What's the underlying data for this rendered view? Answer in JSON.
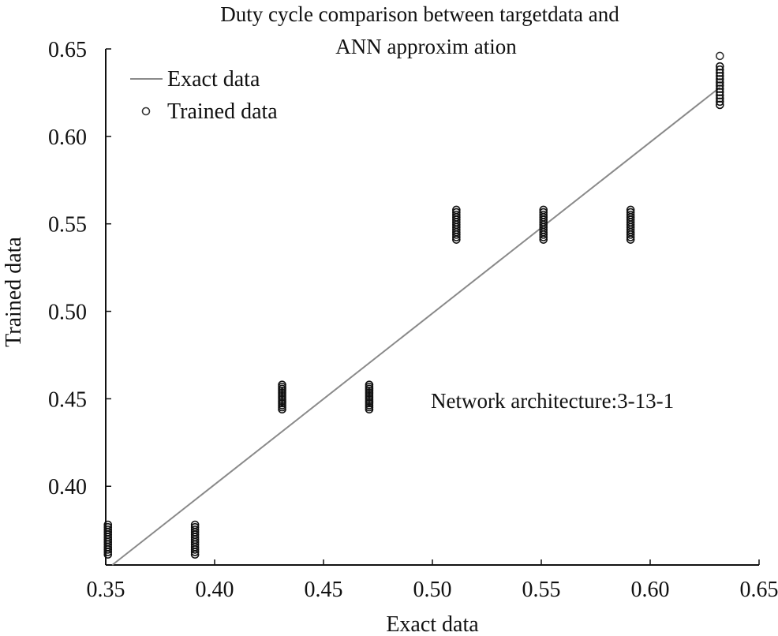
{
  "chart_data": {
    "type": "scatter",
    "title_lines": [
      "Duty cycle comparison between targetdata and",
      "ANN approxim ation"
    ],
    "xlabel": "Exact data",
    "ylabel": "Trained data",
    "xlim": [
      0.35,
      0.65
    ],
    "ylim": [
      0.355,
      0.65
    ],
    "x_ticks": [
      {
        "value": 0.35,
        "label": "0.35"
      },
      {
        "value": 0.4,
        "label": "0.40"
      },
      {
        "value": 0.45,
        "label": "0.45"
      },
      {
        "value": 0.5,
        "label": "0.50"
      },
      {
        "value": 0.55,
        "label": "0.55"
      },
      {
        "value": 0.6,
        "label": "0.60"
      },
      {
        "value": 0.65,
        "label": "0.65"
      }
    ],
    "y_ticks": [
      {
        "value": 0.4,
        "label": "0.40"
      },
      {
        "value": 0.45,
        "label": "0.45"
      },
      {
        "value": 0.5,
        "label": "0.50"
      },
      {
        "value": 0.55,
        "label": "0.55"
      },
      {
        "value": 0.6,
        "label": "0.60"
      },
      {
        "value": 0.65,
        "label": "0.65"
      }
    ],
    "series": [
      {
        "name": "Exact data",
        "kind": "line",
        "color": "#8a8a8a",
        "points": [
          [
            0.353,
            0.355
          ],
          [
            0.632,
            0.628
          ]
        ]
      },
      {
        "name": "Trained data",
        "kind": "scatter",
        "marker": "open-circle",
        "color": "#111111",
        "clusters": [
          {
            "x": 0.351,
            "y_min": 0.361,
            "y_max": 0.378
          },
          {
            "x": 0.391,
            "y_min": 0.361,
            "y_max": 0.378
          },
          {
            "x": 0.431,
            "y_min": 0.444,
            "y_max": 0.458
          },
          {
            "x": 0.471,
            "y_min": 0.444,
            "y_max": 0.458
          },
          {
            "x": 0.511,
            "y_min": 0.541,
            "y_max": 0.558
          },
          {
            "x": 0.551,
            "y_min": 0.541,
            "y_max": 0.558
          },
          {
            "x": 0.591,
            "y_min": 0.541,
            "y_max": 0.558
          },
          {
            "x": 0.632,
            "y_min": 0.618,
            "y_max": 0.64
          }
        ],
        "outliers": [
          [
            0.632,
            0.646
          ]
        ]
      }
    ],
    "legend": {
      "position": "top-left",
      "entries": [
        "Exact data",
        "Trained data"
      ]
    },
    "annotation": "Network architecture:3-13-1",
    "grid": false
  }
}
